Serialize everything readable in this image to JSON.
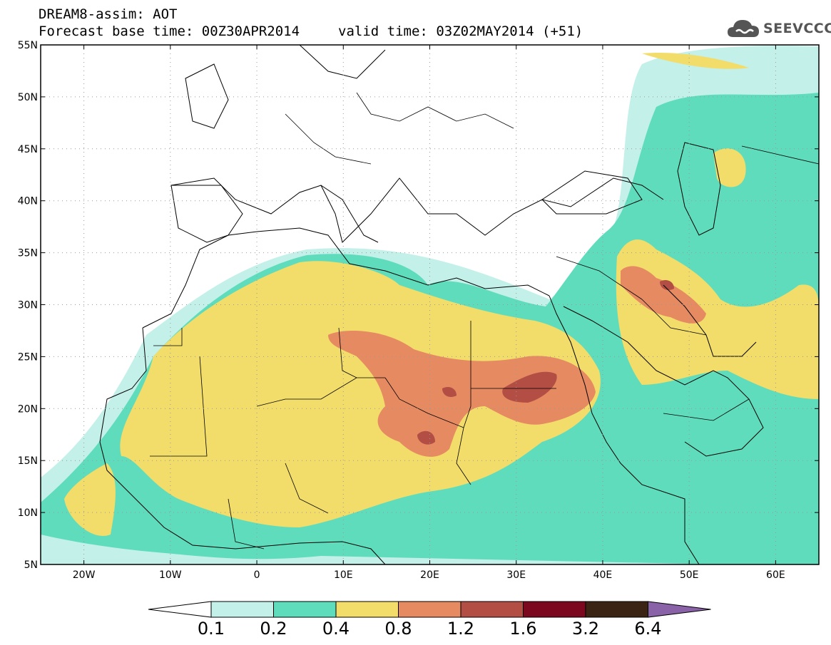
{
  "header": {
    "title": "DREAM8-assim: AOT",
    "base_time": "Forecast base time: 00Z30APR2014",
    "valid_time": "valid time: 03Z02MAY2014 (+51)"
  },
  "logo": {
    "text": "SEEVCCC",
    "icon": "cloud-icon"
  },
  "map": {
    "lon_range": [
      -25,
      65
    ],
    "lat_range": [
      5,
      55
    ],
    "lon_ticks": [
      {
        "lon": -20,
        "label": "20W"
      },
      {
        "lon": -10,
        "label": "10W"
      },
      {
        "lon": 0,
        "label": "0"
      },
      {
        "lon": 10,
        "label": "10E"
      },
      {
        "lon": 20,
        "label": "20E"
      },
      {
        "lon": 30,
        "label": "30E"
      },
      {
        "lon": 40,
        "label": "40E"
      },
      {
        "lon": 50,
        "label": "50E"
      },
      {
        "lon": 60,
        "label": "60E"
      }
    ],
    "lat_ticks": [
      {
        "lat": 5,
        "label": "5N"
      },
      {
        "lat": 10,
        "label": "10N"
      },
      {
        "lat": 15,
        "label": "15N"
      },
      {
        "lat": 20,
        "label": "20N"
      },
      {
        "lat": 25,
        "label": "25N"
      },
      {
        "lat": 30,
        "label": "30N"
      },
      {
        "lat": 35,
        "label": "35N"
      },
      {
        "lat": 40,
        "label": "40N"
      },
      {
        "lat": 45,
        "label": "45N"
      },
      {
        "lat": 50,
        "label": "50N"
      },
      {
        "lat": 55,
        "label": "55N"
      }
    ],
    "gridlines": "dotted",
    "colors": {
      "c01": "#c4f0ea",
      "c02": "#5fdcbc",
      "c04": "#f2dc6a",
      "c08": "#e68a62",
      "c12": "#b24e44",
      "c16": "#7c0820",
      "c32": "#3c2414",
      "c64": "#8a62a8",
      "coast": "#000000"
    }
  },
  "legend": {
    "labels": [
      "0.1",
      "0.2",
      "0.4",
      "0.8",
      "1.2",
      "1.6",
      "3.2",
      "6.4"
    ],
    "colors": [
      "#c4f0ea",
      "#5fdcbc",
      "#f2dc6a",
      "#e68a62",
      "#b24e44",
      "#7c0820",
      "#3c2414"
    ],
    "under_color": "#ffffff",
    "over_color": "#8a62a8"
  }
}
